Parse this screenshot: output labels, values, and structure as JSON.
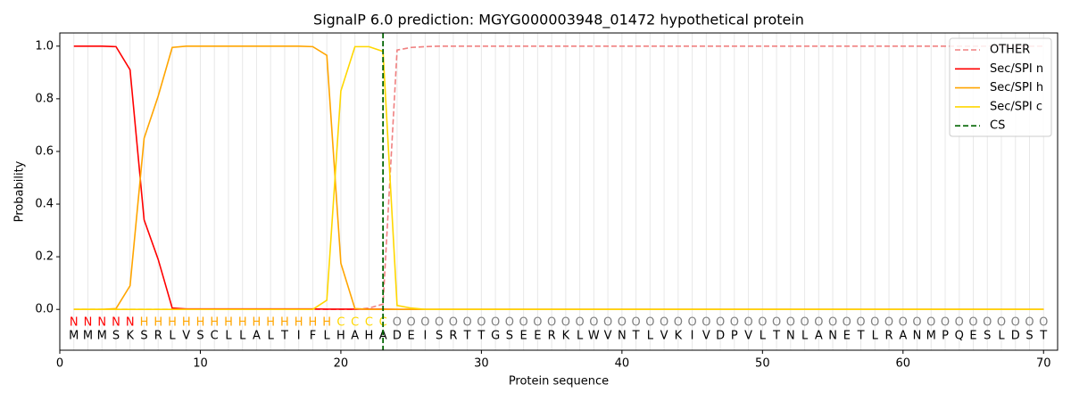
{
  "chart_data": {
    "type": "line",
    "title": "SignalP 6.0 prediction: MGYG000003948_01472 hypothetical protein",
    "xlabel": "Protein sequence",
    "ylabel": "Probability",
    "xlim": [
      0,
      71
    ],
    "ylim": [
      -0.155,
      1.05
    ],
    "xticks": [
      0,
      10,
      20,
      30,
      40,
      50,
      60,
      70
    ],
    "yticks": [
      {
        "value": 0,
        "label": "0.0"
      },
      {
        "value": 0.2,
        "label": "0.2"
      },
      {
        "value": 0.4,
        "label": "0.4"
      },
      {
        "value": 0.6,
        "label": "0.6"
      },
      {
        "value": 0.8,
        "label": "0.8"
      },
      {
        "value": 1,
        "label": "1.0"
      }
    ],
    "legend": "upper right",
    "x": [
      1,
      2,
      3,
      4,
      5,
      6,
      7,
      8,
      9,
      10,
      11,
      12,
      13,
      14,
      15,
      16,
      17,
      18,
      19,
      20,
      21,
      22,
      23,
      24,
      25,
      26,
      27,
      28,
      29,
      30,
      31,
      32,
      33,
      34,
      35,
      36,
      37,
      38,
      39,
      40,
      41,
      42,
      43,
      44,
      45,
      46,
      47,
      48,
      49,
      50,
      51,
      52,
      53,
      54,
      55,
      56,
      57,
      58,
      59,
      60,
      61,
      62,
      63,
      64,
      65,
      66,
      67,
      68,
      69,
      70
    ],
    "sequence": [
      "M",
      "M",
      "M",
      "S",
      "K",
      "S",
      "R",
      "L",
      "V",
      "S",
      "C",
      "L",
      "L",
      "A",
      "L",
      "T",
      "I",
      "F",
      "L",
      "H",
      "A",
      "H",
      "A",
      "D",
      "E",
      "I",
      "S",
      "R",
      "T",
      "T",
      "G",
      "S",
      "E",
      "E",
      "R",
      "K",
      "L",
      "W",
      "V",
      "N",
      "T",
      "L",
      "V",
      "K",
      "I",
      "V",
      "D",
      "P",
      "V",
      "L",
      "T",
      "N",
      "L",
      "A",
      "N",
      "E",
      "T",
      "L",
      "R",
      "A",
      "N",
      "M",
      "P",
      "Q",
      "E",
      "S",
      "L",
      "D",
      "S",
      "T"
    ],
    "labels": [
      "N",
      "N",
      "N",
      "N",
      "N",
      "H",
      "H",
      "H",
      "H",
      "H",
      "H",
      "H",
      "H",
      "H",
      "H",
      "H",
      "H",
      "H",
      "H",
      "C",
      "C",
      "C",
      "C",
      "O",
      "O",
      "O",
      "O",
      "O",
      "O",
      "O",
      "O",
      "O",
      "O",
      "O",
      "O",
      "O",
      "O",
      "O",
      "O",
      "O",
      "O",
      "O",
      "O",
      "O",
      "O",
      "O",
      "O",
      "O",
      "O",
      "O",
      "O",
      "O",
      "O",
      "O",
      "O",
      "O",
      "O",
      "O",
      "O",
      "O",
      "O",
      "O",
      "O",
      "O",
      "O",
      "O",
      "O",
      "O",
      "O",
      "O"
    ],
    "label_colors": {
      "N": "#ff0000",
      "H": "#ffa500",
      "C": "#ffd700",
      "O": "#808080"
    },
    "series": [
      {
        "name": "OTHER",
        "color": "#f08080",
        "dash": true,
        "values": [
          0,
          0,
          0,
          0,
          0,
          0,
          0,
          0,
          0,
          0,
          0,
          0,
          0,
          0,
          0,
          0,
          0,
          0,
          0,
          0,
          0,
          0.005,
          0.02,
          0.985,
          0.995,
          0.998,
          1,
          1,
          1,
          1,
          1,
          1,
          1,
          1,
          1,
          1,
          1,
          1,
          1,
          1,
          1,
          1,
          1,
          1,
          1,
          1,
          1,
          1,
          1,
          1,
          1,
          1,
          1,
          1,
          1,
          1,
          1,
          1,
          1,
          1,
          1,
          1,
          1,
          1,
          1,
          1,
          1,
          1,
          1,
          1
        ]
      },
      {
        "name": "Sec/SPI n",
        "color": "#ff0000",
        "dash": false,
        "values": [
          1,
          1,
          1,
          0.998,
          0.91,
          0.34,
          0.19,
          0.005,
          0.002,
          0.002,
          0.002,
          0.002,
          0.002,
          0.002,
          0.002,
          0.002,
          0.002,
          0.002,
          0.001,
          0.001,
          0.001,
          0.001,
          0.001,
          0,
          0,
          0,
          0,
          0,
          0,
          0,
          0,
          0,
          0,
          0,
          0,
          0,
          0,
          0,
          0,
          0,
          0,
          0,
          0,
          0,
          0,
          0,
          0,
          0,
          0,
          0,
          0,
          0,
          0,
          0,
          0,
          0,
          0,
          0,
          0,
          0,
          0,
          0,
          0,
          0,
          0,
          0,
          0,
          0,
          0,
          0
        ]
      },
      {
        "name": "Sec/SPI h",
        "color": "#ffa500",
        "dash": false,
        "values": [
          0,
          0,
          0,
          0.003,
          0.09,
          0.65,
          0.81,
          0.995,
          1,
          1,
          1,
          1,
          1,
          1,
          1,
          1,
          1,
          0.998,
          0.965,
          0.175,
          0.003,
          0,
          0,
          0,
          0,
          0,
          0,
          0,
          0,
          0,
          0,
          0,
          0,
          0,
          0,
          0,
          0,
          0,
          0,
          0,
          0,
          0,
          0,
          0,
          0,
          0,
          0,
          0,
          0,
          0,
          0,
          0,
          0,
          0,
          0,
          0,
          0,
          0,
          0,
          0,
          0,
          0,
          0,
          0,
          0,
          0,
          0,
          0,
          0,
          0
        ]
      },
      {
        "name": "Sec/SPI c",
        "color": "#ffd700",
        "dash": false,
        "values": [
          0,
          0,
          0,
          0,
          0,
          0,
          0,
          0,
          0,
          0,
          0,
          0,
          0,
          0,
          0,
          0,
          0,
          0,
          0.035,
          0.83,
          0.998,
          0.998,
          0.98,
          0.015,
          0.005,
          0,
          0,
          0,
          0,
          0,
          0,
          0,
          0,
          0,
          0,
          0,
          0,
          0,
          0,
          0,
          0,
          0,
          0,
          0,
          0,
          0,
          0,
          0,
          0,
          0,
          0,
          0,
          0,
          0,
          0,
          0,
          0,
          0,
          0,
          0,
          0,
          0,
          0,
          0,
          0,
          0,
          0,
          0,
          0,
          0
        ]
      }
    ],
    "cs": {
      "name": "CS",
      "x": 23,
      "color": "#006400"
    }
  }
}
